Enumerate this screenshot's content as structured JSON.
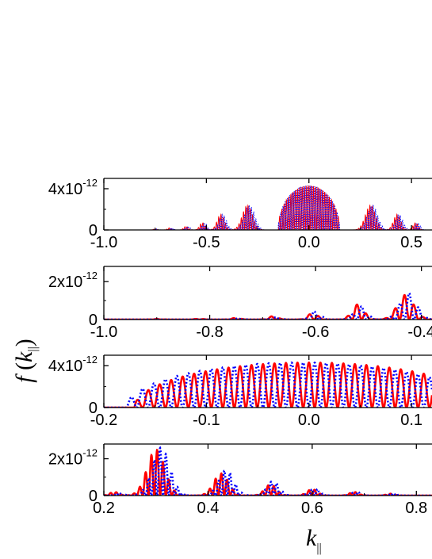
{
  "chart_data": [
    {
      "type": "line",
      "panel": "top",
      "xlim": [
        -1.0,
        0.6
      ],
      "ylim": [
        0,
        5e-12
      ],
      "xticks": [
        -1.0,
        -0.5,
        0.0,
        0.5
      ],
      "xtick_labels": [
        "-1.0",
        "-0.5",
        "0.0",
        "0.5"
      ],
      "yticks": [
        0,
        4e-12
      ],
      "ytick_labels": [
        {
          "base": "0",
          "exp": ""
        },
        {
          "base": "4x10",
          "exp": "-12"
        }
      ],
      "grid": false,
      "series": [
        {
          "style": "solid",
          "color": "#ff0000",
          "envelope": {
            "central": {
              "center": 0.0,
              "halfwidth": 0.15,
              "peak": 4.3e-12
            },
            "side_lobes": [
              {
                "x": 0.3,
                "peak": 2.4e-12,
                "w": 0.035
              },
              {
                "x": -0.3,
                "peak": 2.4e-12,
                "w": 0.035
              },
              {
                "x": 0.43,
                "peak": 1.5e-12,
                "w": 0.025
              },
              {
                "x": -0.43,
                "peak": 1.5e-12,
                "w": 0.025
              },
              {
                "x": 0.52,
                "peak": 7e-13,
                "w": 0.018
              },
              {
                "x": -0.52,
                "peak": 7e-13,
                "w": 0.018
              },
              {
                "x": -0.6,
                "peak": 3.5e-13,
                "w": 0.015
              },
              {
                "x": -0.68,
                "peak": 2e-13,
                "w": 0.013
              },
              {
                "x": -0.75,
                "peak": 1e-13,
                "w": 0.012
              }
            ],
            "oscillation_period": 0.011,
            "phase": 0
          }
        },
        {
          "style": "dotted",
          "color": "#0000ff",
          "envelope": {
            "central": {
              "center": 0.0,
              "halfwidth": 0.15,
              "peak": 4.3e-12
            },
            "side_lobes": [
              {
                "x": 0.31,
                "peak": 2.4e-12,
                "w": 0.035
              },
              {
                "x": -0.29,
                "peak": 2.4e-12,
                "w": 0.035
              },
              {
                "x": 0.44,
                "peak": 1.5e-12,
                "w": 0.025
              },
              {
                "x": -0.42,
                "peak": 1.5e-12,
                "w": 0.025
              },
              {
                "x": 0.53,
                "peak": 7e-13,
                "w": 0.018
              },
              {
                "x": -0.51,
                "peak": 7e-13,
                "w": 0.018
              },
              {
                "x": -0.59,
                "peak": 3.5e-13,
                "w": 0.015
              },
              {
                "x": -0.67,
                "peak": 2e-13,
                "w": 0.013
              },
              {
                "x": -0.74,
                "peak": 1e-13,
                "w": 0.012
              }
            ],
            "oscillation_period": 0.011,
            "phase": 0.5
          }
        }
      ]
    },
    {
      "type": "line",
      "panel": "second",
      "xlim": [
        -1.0,
        -0.38
      ],
      "ylim": [
        0,
        2.8e-12
      ],
      "xticks": [
        -1.0,
        -0.8,
        -0.6,
        -0.4
      ],
      "xtick_labels": [
        "-1.0",
        "-0.8",
        "-0.6",
        "-0.4"
      ],
      "yticks": [
        0,
        2e-12
      ],
      "ytick_labels": [
        {
          "base": "0",
          "exp": ""
        },
        {
          "base": "2x10",
          "exp": "-12"
        }
      ],
      "grid": false,
      "series": [
        {
          "style": "solid",
          "color": "#ff0000",
          "envelope": {
            "side_lobes": [
              {
                "x": -0.43,
                "peak": 1.3e-12,
                "w": 0.022
              },
              {
                "x": -0.52,
                "peak": 8e-13,
                "w": 0.016
              },
              {
                "x": -0.605,
                "peak": 3.5e-13,
                "w": 0.013
              },
              {
                "x": -0.68,
                "peak": 1.8e-13,
                "w": 0.012
              },
              {
                "x": -0.75,
                "peak": 9e-14,
                "w": 0.011
              },
              {
                "x": -0.82,
                "peak": 5e-14,
                "w": 0.01
              },
              {
                "x": -0.9,
                "peak": 3e-14,
                "w": 0.01
              }
            ],
            "oscillation_period": 0.018,
            "phase": 0
          }
        },
        {
          "style": "dotted",
          "color": "#0000ff",
          "envelope": {
            "side_lobes": [
              {
                "x": -0.425,
                "peak": 1.4e-12,
                "w": 0.022
              },
              {
                "x": -0.515,
                "peak": 7e-13,
                "w": 0.016
              },
              {
                "x": -0.6,
                "peak": 4.5e-13,
                "w": 0.013
              },
              {
                "x": -0.675,
                "peak": 1.2e-13,
                "w": 0.012
              },
              {
                "x": -0.745,
                "peak": 6e-14,
                "w": 0.011
              }
            ],
            "oscillation_period": 0.018,
            "phase": 0.5
          }
        }
      ]
    },
    {
      "type": "line",
      "panel": "third",
      "xlim": [
        -0.2,
        0.12
      ],
      "ylim": [
        0,
        5e-12
      ],
      "xticks": [
        -0.2,
        -0.1,
        0.0,
        0.1
      ],
      "xtick_labels": [
        "-0.2",
        "-0.1",
        "0.0",
        "0.1"
      ],
      "yticks": [
        0,
        4e-12
      ],
      "ytick_labels": [
        {
          "base": "0",
          "exp": ""
        },
        {
          "base": "4x10",
          "exp": "-12"
        }
      ],
      "grid": false,
      "series": [
        {
          "style": "solid",
          "color": "#ff0000",
          "envelope": {
            "central": {
              "center": 0.0,
              "halfwidth": 0.17,
              "peak": 4.3e-12
            },
            "oscillation_period": 0.0112,
            "phase": 0
          }
        },
        {
          "style": "dotted",
          "color": "#0000ff",
          "envelope": {
            "central": {
              "center": 0.0,
              "halfwidth": 0.17,
              "peak": 4.3e-12,
              "shift": -0.008
            },
            "oscillation_period": 0.0112,
            "phase": 0.5
          }
        }
      ]
    },
    {
      "type": "line",
      "panel": "bottom",
      "xlim": [
        0.2,
        0.83
      ],
      "ylim": [
        0,
        2.8e-12
      ],
      "xticks": [
        0.2,
        0.4,
        0.6,
        0.8
      ],
      "xtick_labels": [
        "0.2",
        "0.4",
        "0.6",
        "0.8"
      ],
      "yticks": [
        0,
        2e-12
      ],
      "ytick_labels": [
        {
          "base": "0",
          "exp": ""
        },
        {
          "base": "2x10",
          "exp": "-12"
        }
      ],
      "grid": false,
      "series": [
        {
          "style": "solid",
          "color": "#ff0000",
          "envelope": {
            "side_lobes": [
              {
                "x": 0.3,
                "peak": 2.5e-12,
                "w": 0.024
              },
              {
                "x": 0.425,
                "peak": 1.2e-12,
                "w": 0.02
              },
              {
                "x": 0.52,
                "peak": 6e-13,
                "w": 0.016
              },
              {
                "x": 0.6,
                "peak": 3.5e-13,
                "w": 0.014
              },
              {
                "x": 0.68,
                "peak": 2e-13,
                "w": 0.012
              },
              {
                "x": 0.75,
                "peak": 1e-13,
                "w": 0.011
              },
              {
                "x": 0.22,
                "peak": 2e-13,
                "w": 0.012
              }
            ],
            "oscillation_period": 0.0112,
            "phase": 0
          }
        },
        {
          "style": "dotted",
          "color": "#0000ff",
          "envelope": {
            "side_lobes": [
              {
                "x": 0.31,
                "peak": 2.6e-12,
                "w": 0.024
              },
              {
                "x": 0.435,
                "peak": 1.4e-12,
                "w": 0.02
              },
              {
                "x": 0.525,
                "peak": 8e-13,
                "w": 0.016
              },
              {
                "x": 0.605,
                "peak": 4e-13,
                "w": 0.014
              },
              {
                "x": 0.685,
                "peak": 2.2e-13,
                "w": 0.012
              },
              {
                "x": 0.755,
                "peak": 1.2e-13,
                "w": 0.011
              },
              {
                "x": 0.23,
                "peak": 1.5e-13,
                "w": 0.012
              }
            ],
            "oscillation_period": 0.0112,
            "phase": 0.5
          }
        }
      ]
    }
  ],
  "labels": {
    "y_title_main": "f",
    "y_title_open": " (",
    "y_title_var": "k",
    "y_title_sub": "||",
    "y_title_close": ")",
    "x_title_var": "k",
    "x_title_sub": "||"
  }
}
